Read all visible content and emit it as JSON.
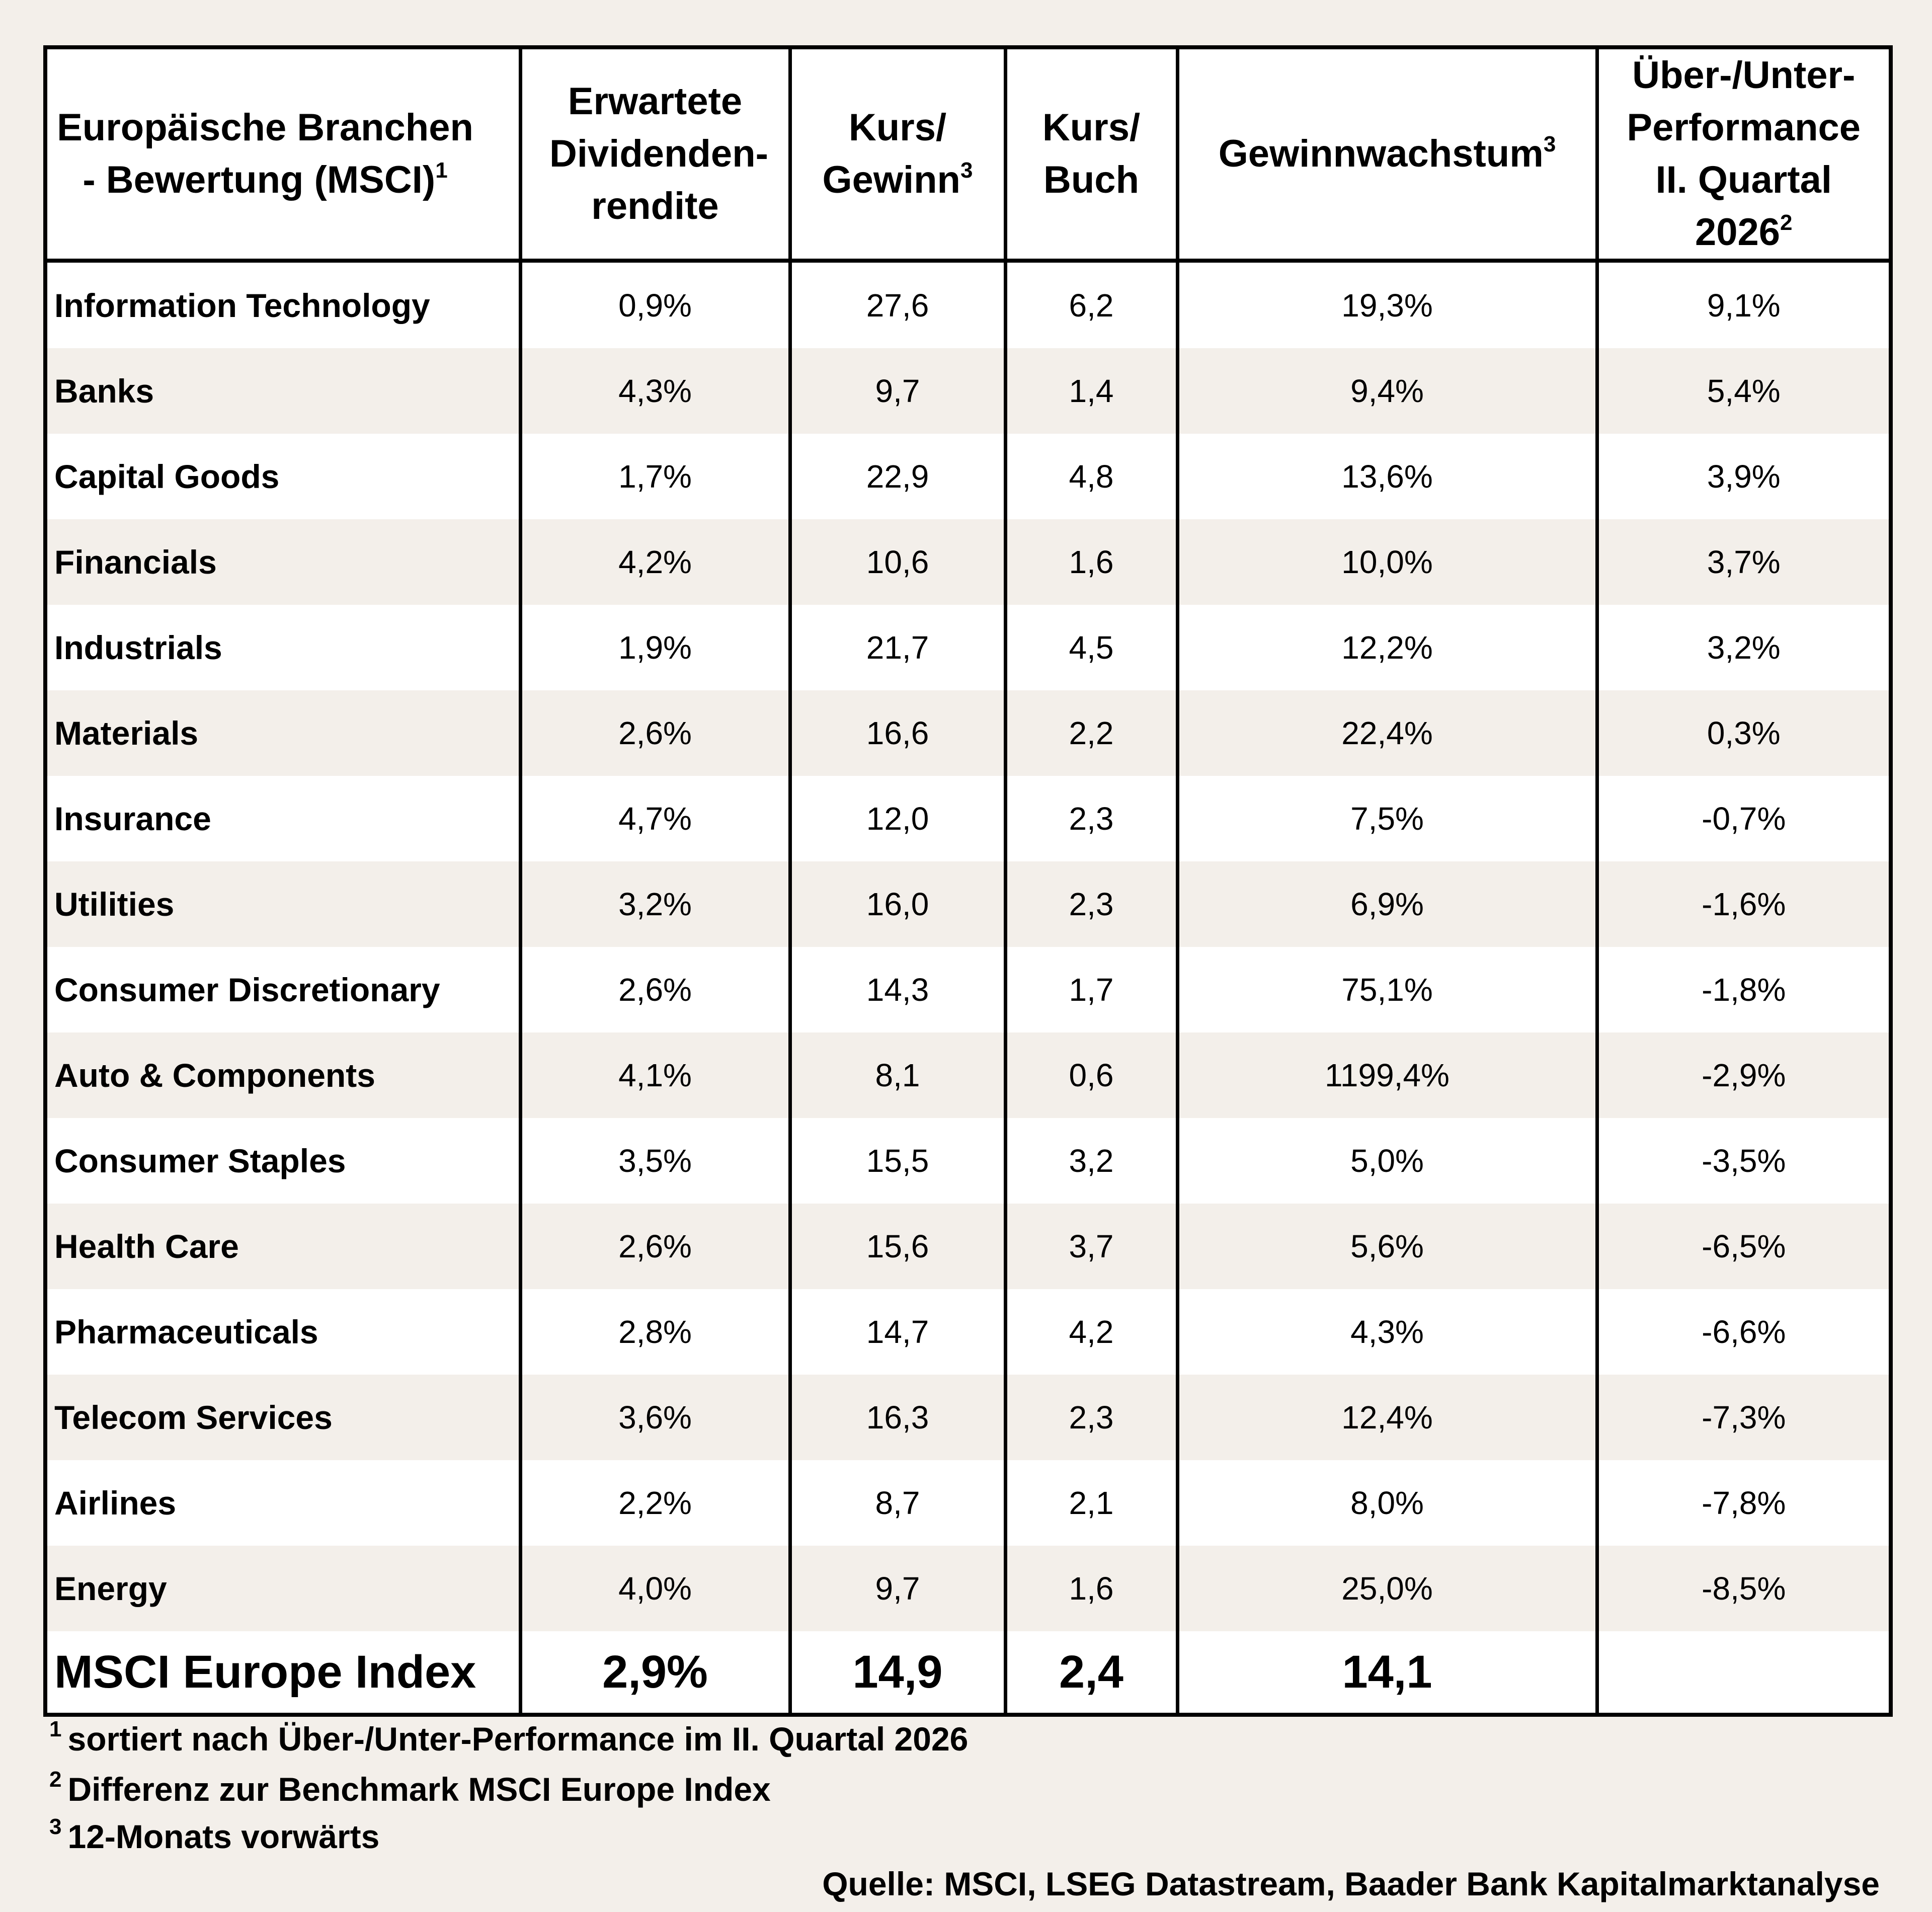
{
  "table": {
    "headers": {
      "branch": "Europäische Branchen - Bewertung (MSCI)",
      "branch_sup": "1",
      "dividend": "Erwartete Dividenden-rendite",
      "pe": "Kurs/ Gewinn",
      "pe_sup": "3",
      "pb": "Kurs/ Buch",
      "growth": "Gewinnwachstum",
      "growth_sup": "3",
      "perf": "Über-/Unter-Performance II. Quartal 2026",
      "perf_sup": "2"
    },
    "rows": [
      {
        "name": "Information Technology",
        "dividend": "0,9%",
        "pe": "27,6",
        "pb": "6,2",
        "growth": "19,3%",
        "perf": "9,1%"
      },
      {
        "name": "Banks",
        "dividend": "4,3%",
        "pe": "9,7",
        "pb": "1,4",
        "growth": "9,4%",
        "perf": "5,4%"
      },
      {
        "name": "Capital Goods",
        "dividend": "1,7%",
        "pe": "22,9",
        "pb": "4,8",
        "growth": "13,6%",
        "perf": "3,9%"
      },
      {
        "name": "Financials",
        "dividend": "4,2%",
        "pe": "10,6",
        "pb": "1,6",
        "growth": "10,0%",
        "perf": "3,7%"
      },
      {
        "name": "Industrials",
        "dividend": "1,9%",
        "pe": "21,7",
        "pb": "4,5",
        "growth": "12,2%",
        "perf": "3,2%"
      },
      {
        "name": "Materials",
        "dividend": "2,6%",
        "pe": "16,6",
        "pb": "2,2",
        "growth": "22,4%",
        "perf": "0,3%"
      },
      {
        "name": "Insurance",
        "dividend": "4,7%",
        "pe": "12,0",
        "pb": "2,3",
        "growth": "7,5%",
        "perf": "-0,7%"
      },
      {
        "name": "Utilities",
        "dividend": "3,2%",
        "pe": "16,0",
        "pb": "2,3",
        "growth": "6,9%",
        "perf": "-1,6%"
      },
      {
        "name": "Consumer Discretionary",
        "dividend": "2,6%",
        "pe": "14,3",
        "pb": "1,7",
        "growth": "75,1%",
        "perf": "-1,8%"
      },
      {
        "name": "Auto & Components",
        "dividend": "4,1%",
        "pe": "8,1",
        "pb": "0,6",
        "growth": "1199,4%",
        "perf": "-2,9%"
      },
      {
        "name": "Consumer Staples",
        "dividend": "3,5%",
        "pe": "15,5",
        "pb": "3,2",
        "growth": "5,0%",
        "perf": "-3,5%"
      },
      {
        "name": "Health Care",
        "dividend": "2,6%",
        "pe": "15,6",
        "pb": "3,7",
        "growth": "5,6%",
        "perf": "-6,5%"
      },
      {
        "name": "Pharmaceuticals",
        "dividend": "2,8%",
        "pe": "14,7",
        "pb": "4,2",
        "growth": "4,3%",
        "perf": "-6,6%"
      },
      {
        "name": "Telecom Services",
        "dividend": "3,6%",
        "pe": "16,3",
        "pb": "2,3",
        "growth": "12,4%",
        "perf": "-7,3%"
      },
      {
        "name": "Airlines",
        "dividend": "2,2%",
        "pe": "8,7",
        "pb": "2,1",
        "growth": "8,0%",
        "perf": "-7,8%"
      },
      {
        "name": "Energy",
        "dividend": "4,0%",
        "pe": "9,7",
        "pb": "1,6",
        "growth": "25,0%",
        "perf": "-8,5%"
      }
    ],
    "total": {
      "name": "MSCI Europe Index",
      "dividend": "2,9%",
      "pe": "14,9",
      "pb": "2,4",
      "growth": "14,1",
      "perf": ""
    }
  },
  "footnotes": [
    {
      "mark": "1",
      "text": "sortiert nach Über-/Unter-Performance im II. Quartal 2026"
    },
    {
      "mark": "2",
      "text": "Differenz zur Benchmark MSCI Europe Index"
    },
    {
      "mark": "3",
      "text": "12-Monats vorwärts"
    }
  ],
  "source": "Quelle: MSCI, LSEG Datastream, Baader Bank Kapitalmarktanalyse"
}
